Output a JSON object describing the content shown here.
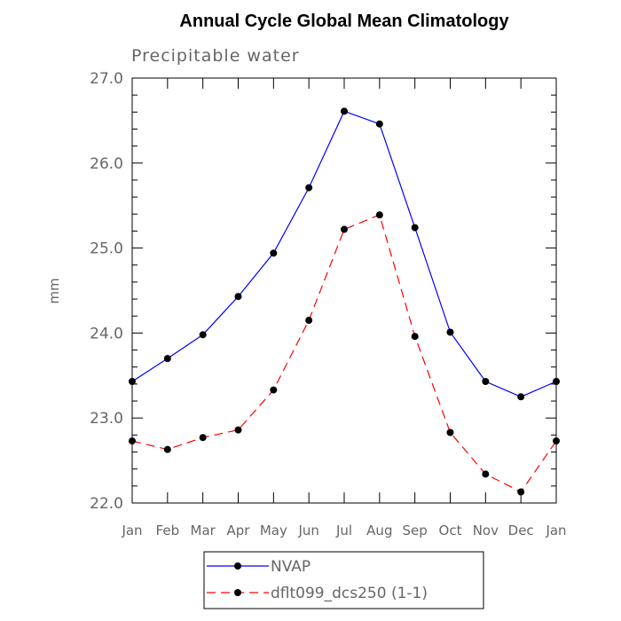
{
  "chart_data": {
    "type": "line",
    "title": "Annual Cycle Global Mean Climatology",
    "subtitle": "Precipitable water",
    "xlabel": "",
    "ylabel": "mm",
    "categories": [
      "Jan",
      "Feb",
      "Mar",
      "Apr",
      "May",
      "Jun",
      "Jul",
      "Aug",
      "Sep",
      "Oct",
      "Nov",
      "Dec",
      "Jan"
    ],
    "ylim": [
      22.0,
      27.0
    ],
    "yticks": [
      22.0,
      23.0,
      24.0,
      25.0,
      26.0,
      27.0
    ],
    "ytick_labels": [
      "22.0",
      "23.0",
      "24.0",
      "25.0",
      "26.0",
      "27.0"
    ],
    "grid": false,
    "legend_position": "bottom",
    "series": [
      {
        "name": "NVAP",
        "color": "#0000ff",
        "dash": "solid",
        "values": [
          23.43,
          23.7,
          23.98,
          24.43,
          24.94,
          25.71,
          26.61,
          26.46,
          25.24,
          24.01,
          23.43,
          23.25,
          23.43
        ]
      },
      {
        "name": "dflt099_dcs250 (1-1)",
        "color": "#ff0000",
        "dash": "dashed",
        "values": [
          22.73,
          22.63,
          22.77,
          22.86,
          23.33,
          24.15,
          25.22,
          25.39,
          23.96,
          22.83,
          22.34,
          22.13,
          22.73
        ]
      }
    ]
  }
}
